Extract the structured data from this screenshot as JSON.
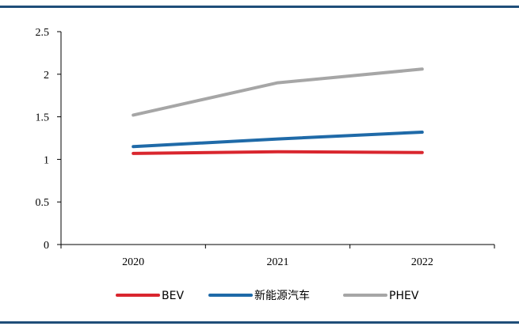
{
  "chart_data": {
    "type": "line",
    "categories": [
      "2020",
      "2021",
      "2022"
    ],
    "ylim": [
      0,
      2.5
    ],
    "yticks": [
      "0",
      "0.5",
      "1",
      "1.5",
      "2",
      "2.5"
    ],
    "grid": false,
    "legend_position": "bottom",
    "series": [
      {
        "name": "BEV",
        "color": "#d9262e",
        "values": [
          1.07,
          1.09,
          1.08
        ]
      },
      {
        "name": "新能源汽车",
        "color": "#1f6aa8",
        "values": [
          1.15,
          1.24,
          1.32
        ]
      },
      {
        "name": "PHEV",
        "color": "#a6a6a6",
        "values": [
          1.52,
          1.9,
          2.06
        ]
      }
    ]
  }
}
